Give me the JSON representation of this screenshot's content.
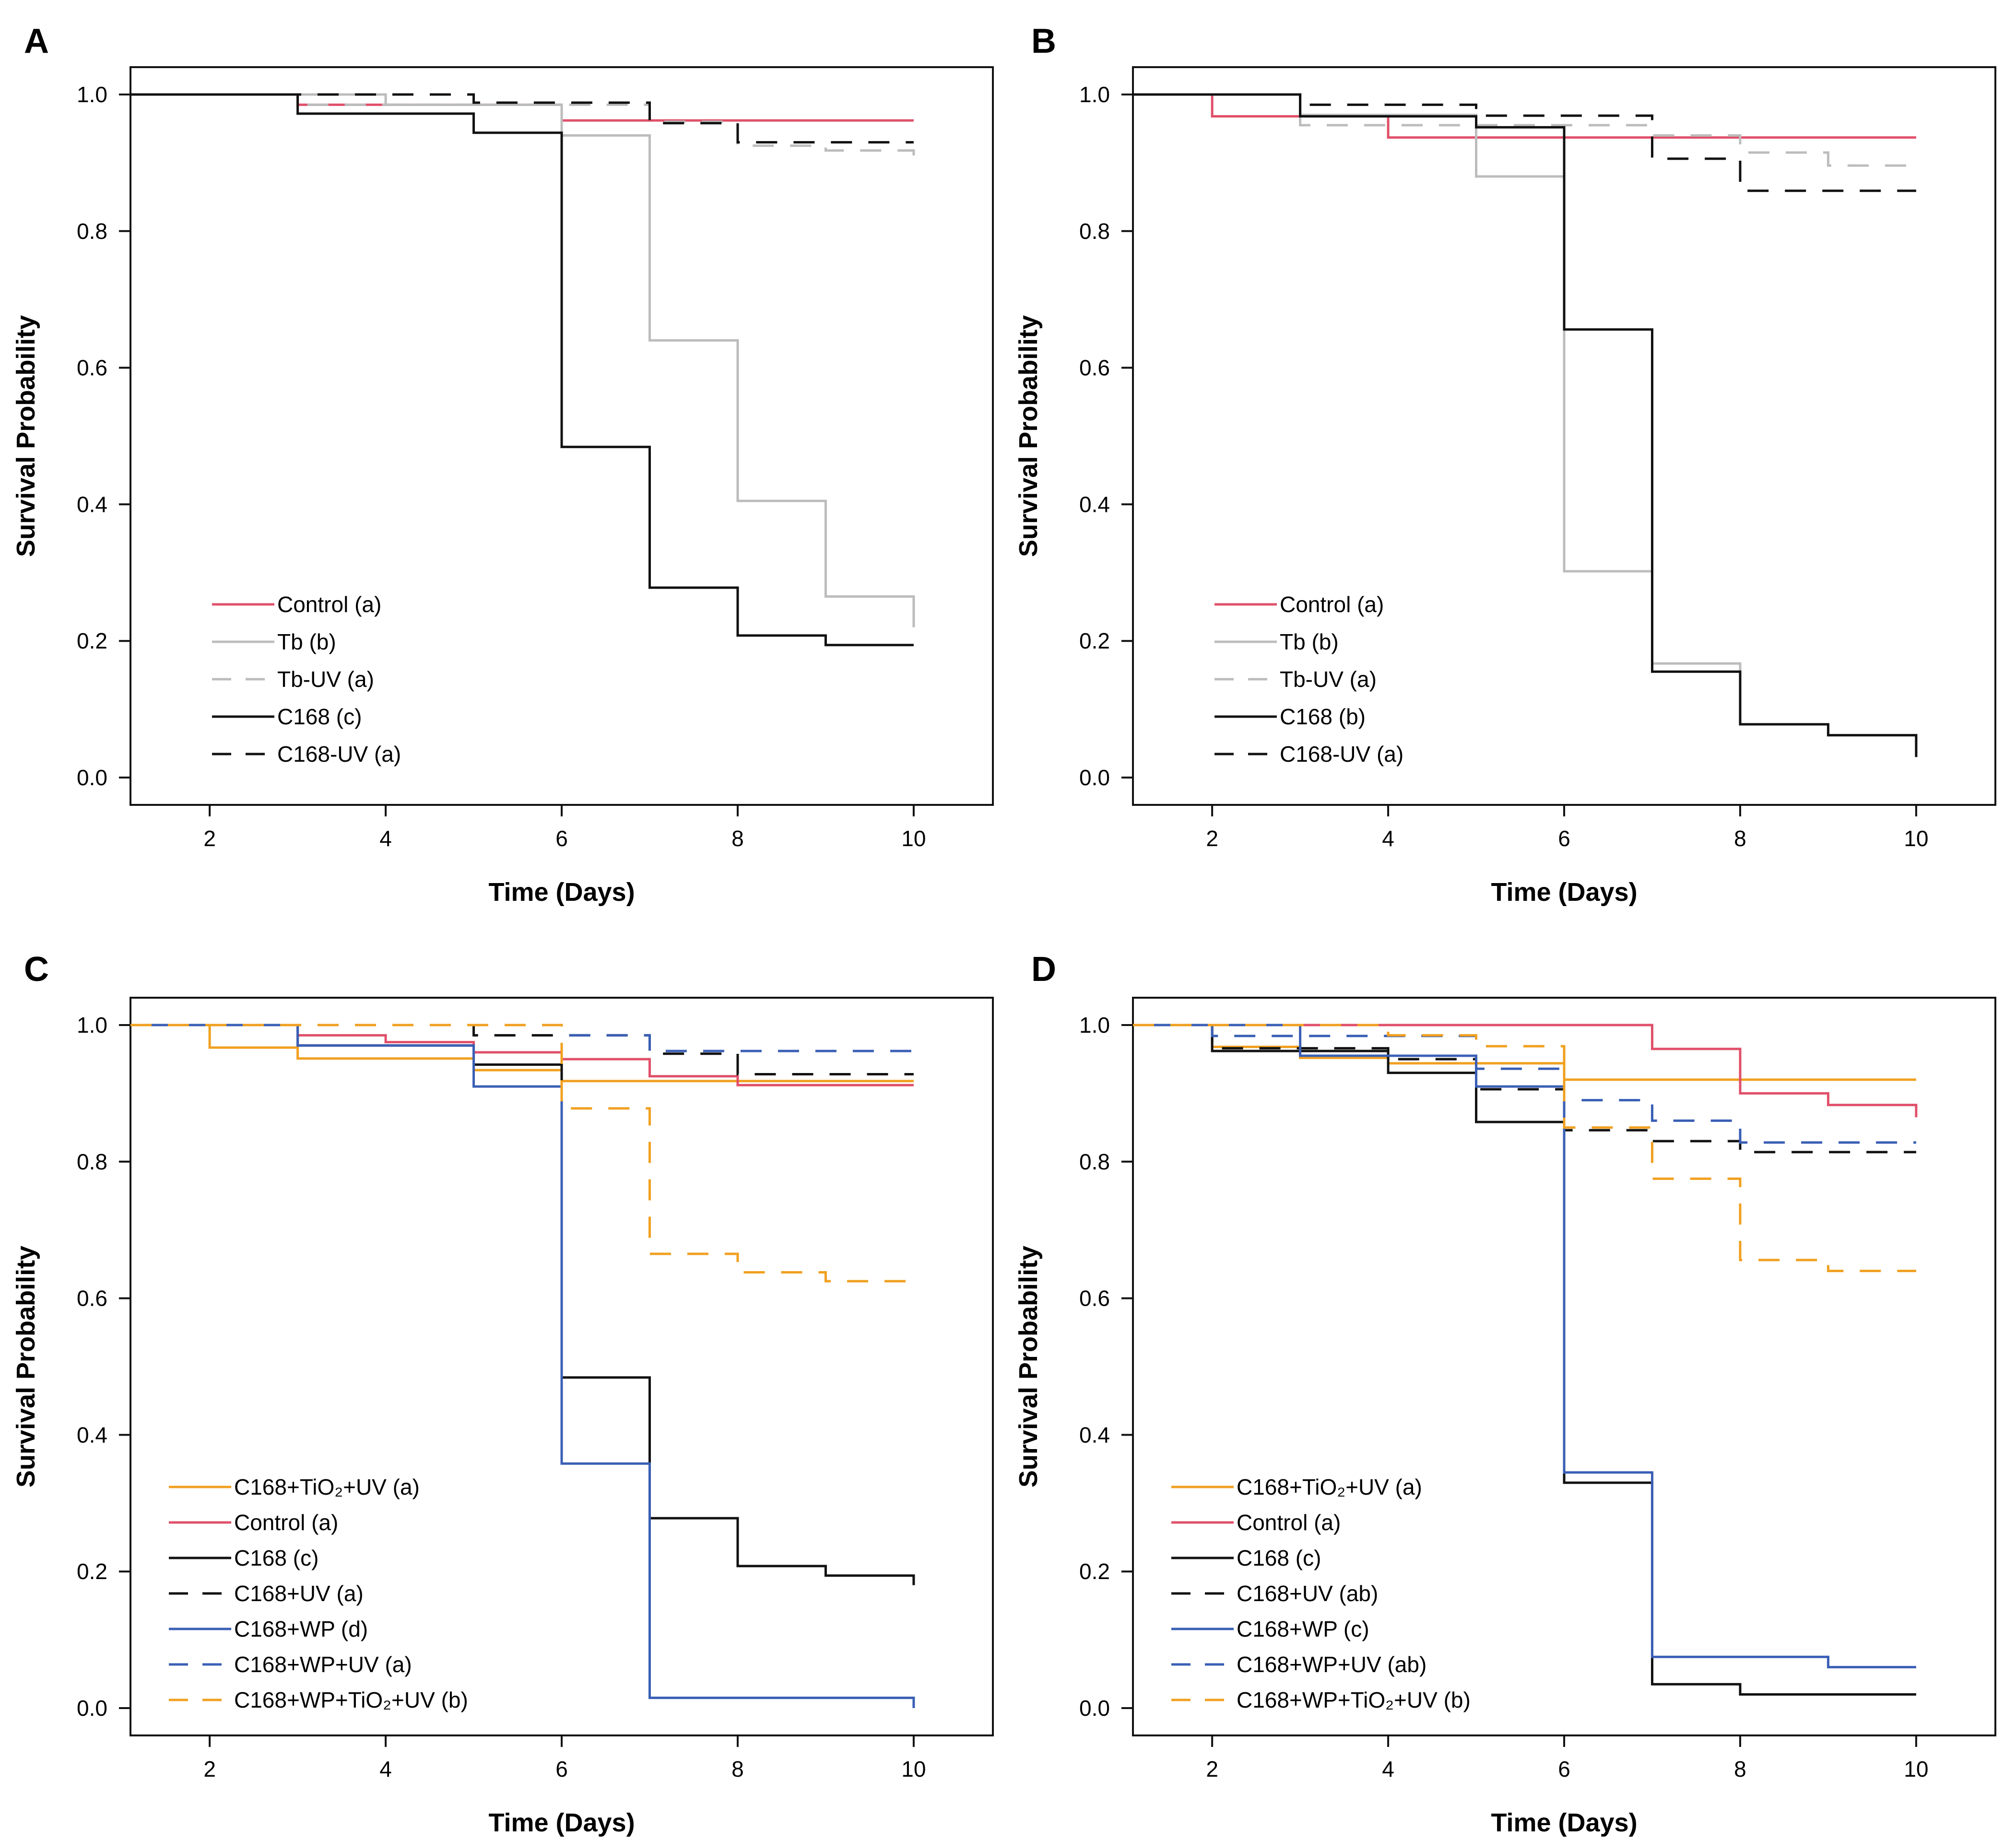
{
  "figure": {
    "description_colors": {
      "red": "#e0506a",
      "gray": "#bcbcbc",
      "black": "#111111",
      "orange": "#f0a020",
      "blue": "#3a5fb5"
    }
  },
  "chart_data": [
    {
      "panel": "A",
      "type": "line",
      "step": "post",
      "xlabel": "Time (Days)",
      "ylabel": "Survival Probability",
      "xlim": [
        1.1,
        10.9
      ],
      "ylim": [
        -0.04,
        1.04
      ],
      "xticks": [
        2,
        4,
        6,
        8,
        10
      ],
      "yticks": [
        "0.0",
        "0.2",
        "0.4",
        "0.6",
        "0.8",
        "1.0"
      ],
      "legend_position": "bottom-left",
      "series": [
        {
          "name": "Control (a)",
          "color": "#e0506a",
          "dash": "solid",
          "x": [
            1.1,
            3,
            6,
            10
          ],
          "y": [
            1.0,
            0.985,
            0.962,
            0.962
          ]
        },
        {
          "name": "Tb (b)",
          "color": "#bcbcbc",
          "dash": "solid",
          "x": [
            1.1,
            4,
            6,
            7,
            8,
            9,
            10
          ],
          "y": [
            1.0,
            0.985,
            0.94,
            0.64,
            0.405,
            0.265,
            0.22
          ]
        },
        {
          "name": "Tb-UV (a)",
          "color": "#bcbcbc",
          "dash": "dashed",
          "x": [
            1.1,
            3,
            7,
            8,
            9,
            10
          ],
          "y": [
            1.0,
            0.985,
            0.96,
            0.925,
            0.918,
            0.89
          ]
        },
        {
          "name": "C168 (c)",
          "color": "#111111",
          "dash": "solid",
          "x": [
            1.1,
            3,
            5,
            6,
            7,
            8,
            9,
            10
          ],
          "y": [
            1.0,
            0.972,
            0.944,
            0.484,
            0.278,
            0.208,
            0.194,
            0.194
          ]
        },
        {
          "name": "C168-UV (a)",
          "color": "#111111",
          "dash": "dashed",
          "x": [
            1.1,
            5,
            7,
            8,
            10
          ],
          "y": [
            1.0,
            0.988,
            0.958,
            0.93,
            0.93
          ]
        }
      ]
    },
    {
      "panel": "B",
      "type": "line",
      "step": "post",
      "xlabel": "Time (Days)",
      "ylabel": "Survival Probability",
      "xlim": [
        1.1,
        10.9
      ],
      "ylim": [
        -0.04,
        1.04
      ],
      "xticks": [
        2,
        4,
        6,
        8,
        10
      ],
      "yticks": [
        "0.0",
        "0.2",
        "0.4",
        "0.6",
        "0.8",
        "1.0"
      ],
      "legend_position": "bottom-left",
      "series": [
        {
          "name": "Control (a)",
          "color": "#e0506a",
          "dash": "solid",
          "x": [
            1.1,
            2,
            4,
            10
          ],
          "y": [
            1.0,
            0.968,
            0.937,
            0.937
          ]
        },
        {
          "name": "Tb (b)",
          "color": "#bcbcbc",
          "dash": "solid",
          "x": [
            1.1,
            3,
            5,
            6,
            7,
            8,
            9,
            10
          ],
          "y": [
            1.0,
            0.97,
            0.88,
            0.302,
            0.167,
            0.078,
            0.062,
            0.035
          ]
        },
        {
          "name": "Tb-UV (a)",
          "color": "#bcbcbc",
          "dash": "dashed",
          "x": [
            1.1,
            3,
            7,
            8,
            9,
            10
          ],
          "y": [
            1.0,
            0.955,
            0.94,
            0.915,
            0.896,
            0.896
          ]
        },
        {
          "name": "C168 (b)",
          "color": "#111111",
          "dash": "solid",
          "x": [
            1.1,
            3,
            5,
            6,
            7,
            8,
            9,
            10
          ],
          "y": [
            1.0,
            0.968,
            0.952,
            0.656,
            0.155,
            0.078,
            0.062,
            0.03
          ]
        },
        {
          "name": "C168-UV (a)",
          "color": "#111111",
          "dash": "dashed",
          "x": [
            1.1,
            3,
            5,
            7,
            8,
            10
          ],
          "y": [
            1.0,
            0.985,
            0.969,
            0.906,
            0.859,
            0.859
          ]
        }
      ]
    },
    {
      "panel": "C",
      "type": "line",
      "step": "post",
      "xlabel": "Time (Days)",
      "ylabel": "Survival Probability",
      "xlim": [
        1.1,
        10.9
      ],
      "ylim": [
        -0.04,
        1.04
      ],
      "xticks": [
        2,
        4,
        6,
        8,
        10
      ],
      "yticks": [
        "0.0",
        "0.2",
        "0.4",
        "0.6",
        "0.8",
        "1.0"
      ],
      "legend_position": "bottom-left",
      "series": [
        {
          "name": "C168+TiO₂+UV (a)",
          "color": "#f0a020",
          "dash": "solid",
          "x": [
            1.1,
            2,
            3,
            5,
            6,
            10
          ],
          "y": [
            1.0,
            0.967,
            0.951,
            0.934,
            0.918,
            0.918
          ]
        },
        {
          "name": "Control (a)",
          "color": "#e0506a",
          "dash": "solid",
          "x": [
            1.1,
            3,
            4,
            5,
            6,
            7,
            8,
            10
          ],
          "y": [
            1.0,
            0.985,
            0.975,
            0.96,
            0.95,
            0.925,
            0.912,
            0.912
          ]
        },
        {
          "name": "C168 (c)",
          "color": "#111111",
          "dash": "solid",
          "x": [
            1.1,
            3,
            5,
            6,
            7,
            8,
            9,
            10
          ],
          "y": [
            1.0,
            0.97,
            0.942,
            0.484,
            0.278,
            0.208,
            0.194,
            0.18
          ]
        },
        {
          "name": "C168+UV (a)",
          "color": "#111111",
          "dash": "dashed",
          "x": [
            1.1,
            5,
            7,
            8,
            10
          ],
          "y": [
            1.0,
            0.985,
            0.958,
            0.928,
            0.928
          ]
        },
        {
          "name": "C168+WP (d)",
          "color": "#3a5fb5",
          "dash": "solid",
          "x": [
            1.1,
            3,
            5,
            6,
            7,
            10
          ],
          "y": [
            1.0,
            0.97,
            0.91,
            0.358,
            0.015,
            0.0
          ]
        },
        {
          "name": "C168+WP+UV (a)",
          "color": "#3a5fb5",
          "dash": "dashed",
          "x": [
            1.1,
            6,
            7,
            10
          ],
          "y": [
            1.0,
            0.985,
            0.962,
            0.952
          ]
        },
        {
          "name": "C168+WP+TiO₂+UV (b)",
          "color": "#f0a020",
          "dash": "dashed",
          "x": [
            1.1,
            6,
            7,
            8,
            9,
            10
          ],
          "y": [
            1.0,
            0.878,
            0.665,
            0.638,
            0.625,
            0.625
          ]
        }
      ]
    },
    {
      "panel": "D",
      "type": "line",
      "step": "post",
      "xlabel": "Time (Days)",
      "ylabel": "Survival Probability",
      "xlim": [
        1.1,
        10.9
      ],
      "ylim": [
        -0.04,
        1.04
      ],
      "xticks": [
        2,
        4,
        6,
        8,
        10
      ],
      "yticks": [
        "0.0",
        "0.2",
        "0.4",
        "0.6",
        "0.8",
        "1.0"
      ],
      "legend_position": "bottom-left",
      "series": [
        {
          "name": "C168+TiO₂+UV (a)",
          "color": "#f0a020",
          "dash": "solid",
          "x": [
            1.1,
            2,
            3,
            4,
            6,
            10
          ],
          "y": [
            1.0,
            0.968,
            0.952,
            0.944,
            0.92,
            0.92
          ]
        },
        {
          "name": "Control (a)",
          "color": "#e0506a",
          "dash": "solid",
          "x": [
            1.1,
            7,
            8,
            9,
            10
          ],
          "y": [
            1.0,
            0.965,
            0.9,
            0.883,
            0.865
          ]
        },
        {
          "name": "C168 (c)",
          "color": "#111111",
          "dash": "solid",
          "x": [
            1.1,
            2,
            4,
            5,
            6,
            7,
            8,
            10
          ],
          "y": [
            1.0,
            0.962,
            0.93,
            0.858,
            0.33,
            0.035,
            0.02,
            0.02
          ]
        },
        {
          "name": "C168+UV (ab)",
          "color": "#111111",
          "dash": "dashed",
          "x": [
            1.1,
            2,
            4,
            5,
            6,
            7,
            8,
            10
          ],
          "y": [
            1.0,
            0.966,
            0.95,
            0.906,
            0.846,
            0.83,
            0.814,
            0.814
          ]
        },
        {
          "name": "C168+WP (c)",
          "color": "#3a5fb5",
          "dash": "solid",
          "x": [
            1.1,
            3,
            5,
            6,
            7,
            9,
            10
          ],
          "y": [
            1.0,
            0.955,
            0.91,
            0.345,
            0.075,
            0.06,
            0.06
          ]
        },
        {
          "name": "C168+WP+UV (ab)",
          "color": "#3a5fb5",
          "dash": "dashed",
          "x": [
            1.1,
            2,
            5,
            6,
            7,
            8,
            10
          ],
          "y": [
            1.0,
            0.984,
            0.936,
            0.89,
            0.86,
            0.828,
            0.828
          ]
        },
        {
          "name": "C168+WP+TiO₂+UV (b)",
          "color": "#f0a020",
          "dash": "dashed",
          "x": [
            1.1,
            4,
            5,
            6,
            7,
            8,
            9,
            10
          ],
          "y": [
            1.0,
            0.985,
            0.969,
            0.85,
            0.775,
            0.656,
            0.64,
            0.64
          ]
        }
      ]
    }
  ]
}
